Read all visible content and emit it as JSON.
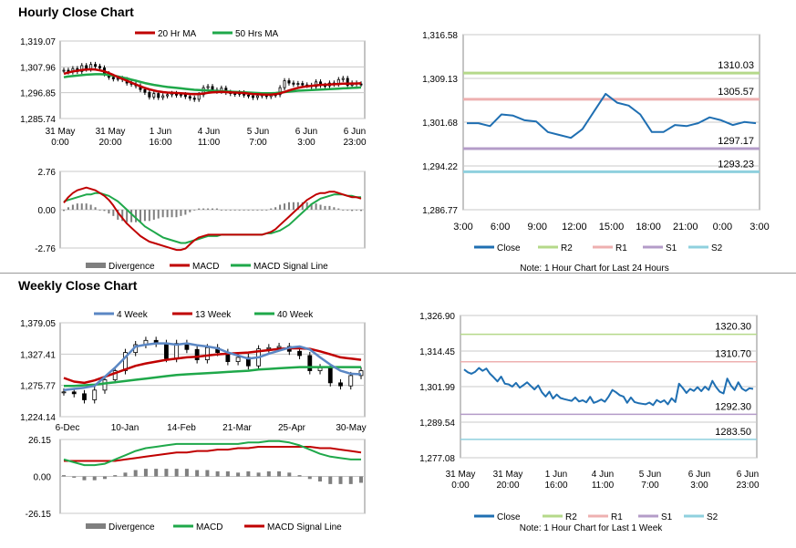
{
  "titles": {
    "hourly": "Hourly Close Chart",
    "weekly": "Weekly Close Chart"
  },
  "colors": {
    "red": "#c00000",
    "green": "#1fa84a",
    "blue": "#1f6fb2",
    "r2": "#b5d98a",
    "r1": "#eeb0b0",
    "s1": "#b49cc8",
    "s2": "#8fd0de",
    "gray": "#7f7f7f",
    "steel": "#5b87c4"
  },
  "chart_data": [
    {
      "id": "hourly_price",
      "type": "candlestick",
      "legend": [
        "20 Hr MA",
        "50 Hrs MA"
      ],
      "y_ticks": [
        "1,319.07",
        "1,307.96",
        "1,296.85",
        "1,285.74"
      ],
      "x_ticks": [
        "31 May\n0:00",
        "31 May\n20:00",
        "1 Jun\n16:00",
        "4 Jun\n11:00",
        "5 Jun\n7:00",
        "6 Jun\n3:00",
        "6 Jun\n23:00"
      ],
      "ylim": [
        1285.74,
        1319.07
      ],
      "close": [
        1306.5,
        1305.8,
        1307.2,
        1306.0,
        1308.5,
        1307.0,
        1309.0,
        1308.2,
        1307.5,
        1305.0,
        1303.5,
        1302.8,
        1303.0,
        1302.5,
        1301.0,
        1300.5,
        1299.8,
        1298.2,
        1297.0,
        1295.0,
        1296.5,
        1294.8,
        1295.5,
        1296.0,
        1296.5,
        1295.8,
        1296.0,
        1295.2,
        1294.5,
        1294.0,
        1296.0,
        1299.0,
        1299.5,
        1298.0,
        1297.5,
        1298.8,
        1297.0,
        1296.5,
        1296.2,
        1296.8,
        1295.8,
        1295.5,
        1294.8,
        1295.5,
        1296.0,
        1295.2,
        1295.8,
        1296.0,
        1299.0,
        1302.0,
        1301.0,
        1300.5,
        1300.8,
        1300.2,
        1300.0,
        1299.5,
        1301.5,
        1300.0,
        1299.8,
        1301.0,
        1300.5,
        1302.5,
        1303.0,
        1300.0,
        1301.0,
        1300.6,
        1300.5
      ],
      "ma20": [
        1305.0,
        1305.5,
        1306.0,
        1306.3,
        1306.6,
        1306.8,
        1306.9,
        1306.8,
        1306.5,
        1306.0,
        1305.3,
        1304.5,
        1303.6,
        1302.8,
        1302.0,
        1301.2,
        1300.4,
        1299.6,
        1298.9,
        1298.3,
        1297.8,
        1297.4,
        1297.1,
        1296.9,
        1296.8,
        1296.7,
        1296.6,
        1296.5,
        1296.3,
        1296.2,
        1296.3,
        1296.5,
        1296.8,
        1297.0,
        1297.1,
        1297.2,
        1297.1,
        1297.0,
        1296.9,
        1296.8,
        1296.7,
        1296.5,
        1296.3,
        1296.2,
        1296.1,
        1296.0,
        1296.0,
        1296.2,
        1296.6,
        1297.2,
        1297.8,
        1298.4,
        1298.9,
        1299.3,
        1299.6,
        1299.8,
        1300.0,
        1300.2,
        1300.3,
        1300.4,
        1300.5,
        1300.6,
        1300.7,
        1300.7,
        1300.8,
        1300.8,
        1300.9
      ],
      "ma50": [
        1303.5,
        1303.8,
        1304.0,
        1304.2,
        1304.4,
        1304.6,
        1304.7,
        1304.8,
        1304.8,
        1304.7,
        1304.5,
        1304.2,
        1303.8,
        1303.4,
        1303.0,
        1302.5,
        1302.0,
        1301.5,
        1301.0,
        1300.6,
        1300.2,
        1299.9,
        1299.6,
        1299.3,
        1299.1,
        1298.9,
        1298.7,
        1298.5,
        1298.3,
        1298.1,
        1298.0,
        1297.9,
        1297.8,
        1297.7,
        1297.6,
        1297.5,
        1297.4,
        1297.3,
        1297.2,
        1297.1,
        1297.0,
        1296.9,
        1296.8,
        1296.7,
        1296.6,
        1296.6,
        1296.6,
        1296.7,
        1296.9,
        1297.1,
        1297.3,
        1297.5,
        1297.7,
        1297.8,
        1297.9,
        1298.0,
        1298.1,
        1298.2,
        1298.3,
        1298.4,
        1298.5,
        1298.6,
        1298.7,
        1298.8,
        1298.9,
        1299.0,
        1299.1
      ]
    },
    {
      "id": "hourly_macd",
      "type": "line+bar",
      "y_ticks": [
        "2.76",
        "0.00",
        "-2.76"
      ],
      "ylim": [
        -2.76,
        2.76
      ],
      "legend": [
        "Divergence",
        "MACD",
        "MACD Signal Line"
      ],
      "macd": [
        0.5,
        0.9,
        1.2,
        1.4,
        1.5,
        1.6,
        1.5,
        1.4,
        1.2,
        1.0,
        0.7,
        0.3,
        -0.2,
        -0.6,
        -1.0,
        -1.3,
        -1.6,
        -1.9,
        -2.1,
        -2.3,
        -2.4,
        -2.5,
        -2.6,
        -2.7,
        -2.8,
        -2.9,
        -2.9,
        -2.8,
        -2.5,
        -2.2,
        -2.0,
        -1.9,
        -1.8,
        -1.8,
        -1.8,
        -1.8,
        -1.8,
        -1.8,
        -1.8,
        -1.8,
        -1.8,
        -1.8,
        -1.8,
        -1.8,
        -1.8,
        -1.7,
        -1.6,
        -1.4,
        -1.1,
        -0.8,
        -0.5,
        -0.2,
        0.1,
        0.4,
        0.7,
        0.9,
        1.1,
        1.2,
        1.2,
        1.3,
        1.3,
        1.2,
        1.1,
        1.0,
        0.9,
        0.9,
        0.8
      ],
      "signal": [
        0.6,
        0.7,
        0.8,
        0.9,
        1.0,
        1.1,
        1.1,
        1.2,
        1.2,
        1.1,
        1.0,
        0.8,
        0.6,
        0.3,
        0.0,
        -0.3,
        -0.6,
        -0.9,
        -1.2,
        -1.4,
        -1.6,
        -1.8,
        -2.0,
        -2.1,
        -2.2,
        -2.3,
        -2.4,
        -2.4,
        -2.3,
        -2.2,
        -2.1,
        -2.0,
        -1.9,
        -1.9,
        -1.9,
        -1.8,
        -1.8,
        -1.8,
        -1.8,
        -1.8,
        -1.8,
        -1.8,
        -1.8,
        -1.8,
        -1.8,
        -1.7,
        -1.7,
        -1.6,
        -1.5,
        -1.3,
        -1.1,
        -0.8,
        -0.5,
        -0.2,
        0.1,
        0.4,
        0.6,
        0.8,
        0.9,
        1.0,
        1.1,
        1.1,
        1.1,
        1.0,
        1.0,
        0.9,
        0.9
      ]
    },
    {
      "id": "hourly_levels",
      "type": "line",
      "y_ticks": [
        "1,316.58",
        "1,309.13",
        "1,301.68",
        "1,294.22",
        "1,286.77"
      ],
      "ylim": [
        1286.77,
        1316.58
      ],
      "x_ticks": [
        "3:00",
        "6:00",
        "9:00",
        "12:00",
        "15:00",
        "18:00",
        "21:00",
        "0:00",
        "3:00"
      ],
      "close": [
        1301.5,
        1301.5,
        1301.0,
        1303.0,
        1302.8,
        1302.0,
        1301.8,
        1300.0,
        1299.5,
        1299.0,
        1300.5,
        1303.5,
        1306.5,
        1305.0,
        1304.5,
        1303.0,
        1300.0,
        1300.0,
        1301.2,
        1301.0,
        1301.5,
        1302.5,
        1302.0,
        1301.2,
        1301.7,
        1301.5
      ],
      "levels": [
        {
          "name": "R2",
          "value": 1310.03,
          "label": "1310.03"
        },
        {
          "name": "R1",
          "value": 1305.57,
          "label": "1305.57"
        },
        {
          "name": "S1",
          "value": 1297.17,
          "label": "1297.17"
        },
        {
          "name": "S2",
          "value": 1293.23,
          "label": "1293.23"
        }
      ],
      "legend": [
        "Close",
        "R2",
        "R1",
        "S1",
        "S2"
      ],
      "note": "Note: 1 Hour Chart for Last 24 Hours"
    },
    {
      "id": "weekly_price",
      "type": "candlestick",
      "legend": [
        "4 Week",
        "13 Week",
        "40 Week"
      ],
      "y_ticks": [
        "1,379.05",
        "1,327.41",
        "1,275.77",
        "1,224.14"
      ],
      "ylim": [
        1224.14,
        1379.05
      ],
      "x_ticks": [
        "6-Dec",
        "10-Jan",
        "14-Feb",
        "21-Mar",
        "25-Apr",
        "30-May"
      ],
      "close": [
        1265,
        1262,
        1252,
        1268,
        1285,
        1300,
        1330,
        1343,
        1350,
        1345,
        1320,
        1345,
        1335,
        1318,
        1338,
        1330,
        1315,
        1322,
        1308,
        1336,
        1338,
        1340,
        1332,
        1325,
        1300,
        1305,
        1280,
        1275,
        1292,
        1300
      ],
      "w4": [
        1268,
        1270,
        1272,
        1275,
        1290,
        1305,
        1322,
        1340,
        1343,
        1345,
        1345,
        1343,
        1345,
        1342,
        1340,
        1337,
        1330,
        1325,
        1320,
        1322,
        1328,
        1333,
        1338,
        1340,
        1335,
        1322,
        1310,
        1300,
        1295,
        1294
      ],
      "w13": [
        1288,
        1282,
        1280,
        1284,
        1290,
        1296,
        1302,
        1308,
        1312,
        1315,
        1318,
        1320,
        1322,
        1323,
        1325,
        1327,
        1328,
        1329,
        1330,
        1332,
        1334,
        1336,
        1337,
        1337,
        1336,
        1332,
        1327,
        1322,
        1320,
        1318
      ],
      "w40": [
        1275,
        1275,
        1276,
        1277,
        1279,
        1281,
        1283,
        1285,
        1287,
        1289,
        1291,
        1293,
        1294,
        1295,
        1296,
        1297,
        1298,
        1299,
        1300,
        1302,
        1303,
        1304,
        1305,
        1306,
        1306,
        1306,
        1306,
        1306,
        1306,
        1306
      ]
    },
    {
      "id": "weekly_macd",
      "type": "line+bar",
      "y_ticks": [
        "26.15",
        "0.00",
        "-26.15"
      ],
      "ylim": [
        -26.15,
        26.15
      ],
      "legend": [
        "Divergence",
        "MACD",
        "MACD Signal Line"
      ],
      "macd": [
        12,
        10,
        8,
        8,
        9,
        12,
        15,
        18,
        20,
        21,
        22,
        23,
        23,
        23,
        23,
        23,
        23,
        23,
        24,
        24,
        25,
        25,
        24,
        22,
        19,
        16,
        14,
        13,
        12,
        12
      ],
      "signal": [
        11,
        11,
        11,
        11,
        11,
        11,
        12,
        13,
        14,
        15,
        16,
        17,
        17,
        18,
        18,
        19,
        19,
        20,
        20,
        21,
        21,
        21,
        21,
        21,
        21,
        20,
        20,
        19,
        18,
        17
      ]
    },
    {
      "id": "weekly_levels",
      "type": "line",
      "y_ticks": [
        "1,326.90",
        "1,314.45",
        "1,301.99",
        "1,289.54",
        "1,277.08"
      ],
      "ylim": [
        1277.08,
        1326.9
      ],
      "x_ticks": [
        "31 May\n0:00",
        "31 May\n20:00",
        "1 Jun\n16:00",
        "4 Jun\n11:00",
        "5 Jun\n7:00",
        "6 Jun\n3:00",
        "6 Jun\n23:00"
      ],
      "close": [
        1308,
        1307,
        1306.5,
        1307.2,
        1308.5,
        1307.5,
        1308.3,
        1306.5,
        1305.2,
        1303.8,
        1305.5,
        1303.0,
        1302.8,
        1302.0,
        1303.3,
        1301.6,
        1302.5,
        1303.5,
        1302.2,
        1301.0,
        1302.4,
        1300.0,
        1298.5,
        1300.2,
        1297.8,
        1299.2,
        1298.0,
        1297.6,
        1297.3,
        1297.0,
        1298.2,
        1296.8,
        1297.2,
        1296.5,
        1298.4,
        1296.3,
        1296.8,
        1297.5,
        1296.7,
        1298.5,
        1300.8,
        1300.0,
        1299.0,
        1298.5,
        1296.3,
        1298.2,
        1296.6,
        1296.2,
        1296.0,
        1295.8,
        1296.4,
        1295.5,
        1297.3,
        1296.5,
        1297.2,
        1295.8,
        1297.9,
        1296.6,
        1303.0,
        1301.5,
        1299.8,
        1301.2,
        1300.5,
        1301.8,
        1300.4,
        1302.0,
        1300.8,
        1304.0,
        1301.8,
        1300.2,
        1299.6,
        1304.8,
        1302.4,
        1300.8,
        1303.5,
        1301.3,
        1300.5,
        1301.4,
        1301.2
      ],
      "levels": [
        {
          "name": "R2",
          "value": 1320.3,
          "label": "1320.30"
        },
        {
          "name": "R1",
          "value": 1310.7,
          "label": "1310.70"
        },
        {
          "name": "S1",
          "value": 1292.3,
          "label": "1292.30"
        },
        {
          "name": "S2",
          "value": 1283.5,
          "label": "1283.50"
        }
      ],
      "legend": [
        "Close",
        "R2",
        "R1",
        "S1",
        "S2"
      ],
      "note": "Note: 1 Hour Chart for Last 1 Week"
    }
  ]
}
